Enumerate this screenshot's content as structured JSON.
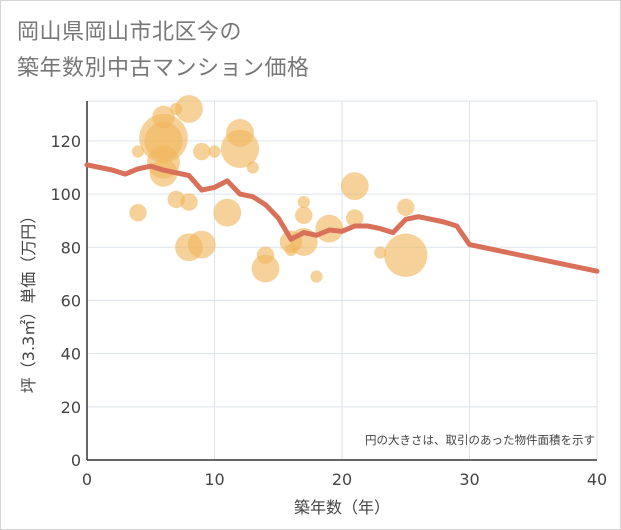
{
  "title_lines": [
    "岡山県岡山市北区今の",
    "築年数別中古マンション価格"
  ],
  "chart_data": {
    "type": "scatter",
    "title": "岡山県岡山市北区今の築年数別中古マンション価格",
    "xlabel": "築年数（年）",
    "ylabel": "坪（3.3㎡）単価（万円）",
    "xlim": [
      0,
      40
    ],
    "ylim": [
      0,
      135
    ],
    "xticks": [
      0,
      10,
      20,
      30,
      40
    ],
    "yticks": [
      0,
      20,
      40,
      60,
      80,
      100,
      120
    ],
    "grid": true,
    "note": "円の大きさは、取引のあった物件面積を示す",
    "colors": {
      "bubble": "#f0b75c",
      "trend": "#d9705a",
      "grid": "#dde3ea",
      "text": "#444444"
    },
    "bubbles": [
      {
        "x": 4,
        "y": 116,
        "size": 1
      },
      {
        "x": 4,
        "y": 93,
        "size": 2
      },
      {
        "x": 6,
        "y": 129,
        "size": 3
      },
      {
        "x": 6,
        "y": 121,
        "size": 8
      },
      {
        "x": 6,
        "y": 120,
        "size": 6
      },
      {
        "x": 6,
        "y": 112,
        "size": 5
      },
      {
        "x": 6,
        "y": 108,
        "size": 4
      },
      {
        "x": 7,
        "y": 132,
        "size": 1
      },
      {
        "x": 7,
        "y": 98,
        "size": 2
      },
      {
        "x": 8,
        "y": 132,
        "size": 4
      },
      {
        "x": 8,
        "y": 97,
        "size": 2
      },
      {
        "x": 8,
        "y": 80,
        "size": 4
      },
      {
        "x": 9,
        "y": 116,
        "size": 2
      },
      {
        "x": 9,
        "y": 81,
        "size": 4
      },
      {
        "x": 10,
        "y": 116,
        "size": 1
      },
      {
        "x": 11,
        "y": 93,
        "size": 4
      },
      {
        "x": 12,
        "y": 123,
        "size": 4
      },
      {
        "x": 12,
        "y": 117,
        "size": 6
      },
      {
        "x": 13,
        "y": 110,
        "size": 1
      },
      {
        "x": 14,
        "y": 77,
        "size": 2
      },
      {
        "x": 14,
        "y": 72,
        "size": 4
      },
      {
        "x": 16,
        "y": 82,
        "size": 3
      },
      {
        "x": 16,
        "y": 79,
        "size": 1
      },
      {
        "x": 17,
        "y": 97,
        "size": 1
      },
      {
        "x": 17,
        "y": 92,
        "size": 2
      },
      {
        "x": 17,
        "y": 82,
        "size": 4
      },
      {
        "x": 18,
        "y": 69,
        "size": 1
      },
      {
        "x": 19,
        "y": 87,
        "size": 4
      },
      {
        "x": 21,
        "y": 103,
        "size": 4
      },
      {
        "x": 21,
        "y": 91,
        "size": 2
      },
      {
        "x": 23,
        "y": 78,
        "size": 1
      },
      {
        "x": 25,
        "y": 95,
        "size": 2
      },
      {
        "x": 25,
        "y": 77,
        "size": 7
      }
    ],
    "trend": {
      "x": [
        0,
        1,
        2,
        3,
        4,
        5,
        6,
        7,
        8,
        9,
        10,
        11,
        12,
        13,
        14,
        15,
        16,
        17,
        18,
        19,
        20,
        21,
        22,
        23,
        24,
        25,
        26,
        27,
        28,
        29,
        30,
        40
      ],
      "y": [
        111,
        110,
        109,
        107.5,
        109.5,
        110.5,
        109,
        108,
        107,
        101.5,
        102.5,
        105,
        100,
        99,
        96,
        91,
        83,
        85.5,
        84.5,
        86.5,
        86,
        88,
        88,
        87,
        85.5,
        90.5,
        91.5,
        90.5,
        89.5,
        88,
        81,
        71
      ]
    }
  }
}
